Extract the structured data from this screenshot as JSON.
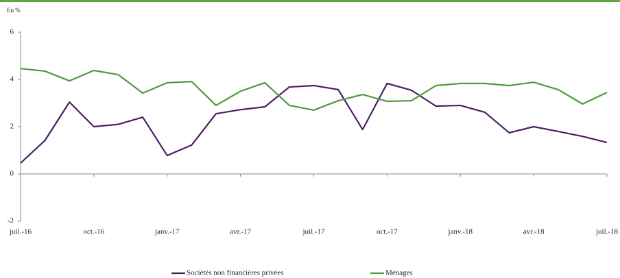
{
  "chart_data": {
    "type": "line",
    "y_label": "En %",
    "categories": [
      "juil.-16",
      null,
      null,
      "oct.-16",
      null,
      null,
      "janv.-17",
      null,
      null,
      "avr.-17",
      null,
      null,
      "juil.-17",
      null,
      null,
      "oct.-17",
      null,
      null,
      "janv.-18",
      null,
      null,
      "avr.-18",
      null,
      null,
      "juil.-18"
    ],
    "series": [
      {
        "name": "Sociétés non financières privées",
        "color": "#4b1d5e",
        "values": [
          0.46,
          1.42,
          3.04,
          2.0,
          2.1,
          2.4,
          0.78,
          1.22,
          2.55,
          2.72,
          2.84,
          3.68,
          3.74,
          3.57,
          1.88,
          3.83,
          3.54,
          2.87,
          2.9,
          2.61,
          1.74,
          2.0,
          1.8,
          1.59,
          1.33
        ]
      },
      {
        "name": "Ménages",
        "color": "#4e9a3d",
        "values": [
          4.46,
          4.35,
          3.94,
          4.38,
          4.2,
          3.42,
          3.86,
          3.91,
          2.9,
          3.5,
          3.86,
          2.9,
          2.7,
          3.1,
          3.36,
          3.07,
          3.1,
          3.74,
          3.83,
          3.83,
          3.74,
          3.88,
          3.57,
          2.96,
          3.45
        ]
      }
    ],
    "ylim": [
      -2,
      6
    ],
    "yticks": [
      -2,
      0,
      2,
      4,
      6
    ],
    "legend": "bottom"
  }
}
